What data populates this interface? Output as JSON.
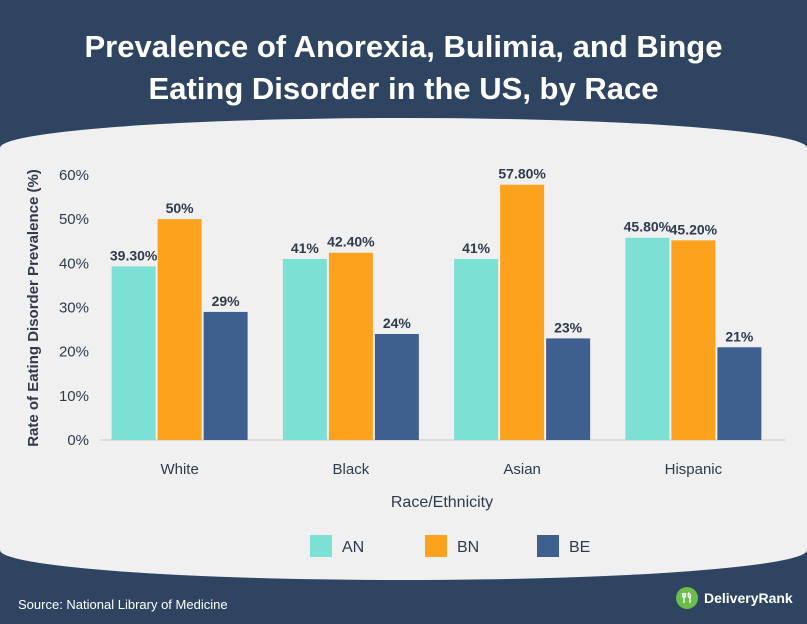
{
  "header": {
    "title_line1": "Prevalence of Anorexia, Bulimia, and Binge",
    "title_line2": "Eating Disorder in the US, by Race"
  },
  "footer": {
    "source": "Source: National Library of Medicine",
    "brand": "DeliveryRank",
    "brand_icon": "fork-knife-leaf-icon"
  },
  "colors": {
    "AN": "#7de0d4",
    "BN": "#fca21c",
    "BE": "#3f5f8e",
    "header_bg": "#2e4461",
    "panel_bg": "#f0f0f0",
    "text_dark": "#2e3b4e"
  },
  "chart_data": {
    "type": "bar",
    "title": "Prevalence of Anorexia, Bulimia, and Binge Eating Disorder in the US, by Race",
    "xlabel": "Race/Ethnicity",
    "ylabel": "Rate of Eating Disorder Prevalence (%)",
    "ylim": [
      0,
      60
    ],
    "yticks": [
      0,
      10,
      20,
      30,
      40,
      50,
      60
    ],
    "ytick_labels": [
      "0%",
      "10%",
      "20%",
      "30%",
      "40%",
      "50%",
      "60%"
    ],
    "grid": false,
    "legend_position": "bottom-center",
    "categories": [
      "White",
      "Black",
      "Asian",
      "Hispanic"
    ],
    "series": [
      {
        "name": "AN",
        "values": [
          39.3,
          41,
          41,
          45.8
        ],
        "labels": [
          "39.30%",
          "41%",
          "41%",
          "45.80%"
        ]
      },
      {
        "name": "BN",
        "values": [
          50,
          42.4,
          57.8,
          45.2
        ],
        "labels": [
          "50%",
          "42.40%",
          "57.80%",
          "45.20%"
        ]
      },
      {
        "name": "BE",
        "values": [
          29,
          24,
          23,
          21
        ],
        "labels": [
          "29%",
          "24%",
          "23%",
          "21%"
        ]
      }
    ]
  }
}
